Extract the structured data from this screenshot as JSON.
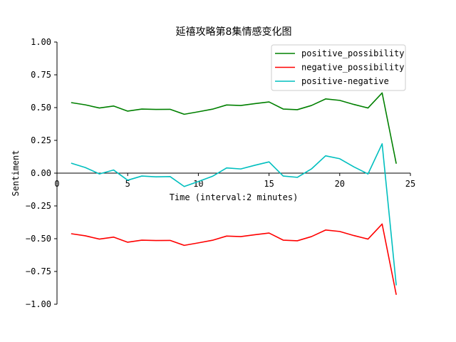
{
  "chart_data": {
    "type": "line",
    "title": "延禧攻略第8集情感变化图",
    "xlabel": "Time (interval:2 minutes)",
    "ylabel": "Sentiment",
    "xlim": [
      0,
      25
    ],
    "ylim": [
      -1.0,
      1.0
    ],
    "xticks": [
      0,
      5,
      10,
      15,
      20,
      25
    ],
    "yticks": [
      1.0,
      0.75,
      0.5,
      0.25,
      0.0,
      -0.25,
      -0.5,
      -0.75,
      -1.0
    ],
    "xtick_labels": [
      "0",
      "5",
      "10",
      "15",
      "20",
      "25"
    ],
    "ytick_labels": [
      "1.00",
      "0.75",
      "0.50",
      "0.25",
      "0.00",
      "−0.25",
      "−0.50",
      "−0.75",
      "−1.00"
    ],
    "grid": false,
    "legend_position": "upper right",
    "x": [
      1,
      2,
      3,
      4,
      5,
      6,
      7,
      8,
      9,
      10,
      11,
      12,
      13,
      14,
      15,
      16,
      17,
      18,
      19,
      20,
      21,
      22,
      23,
      24
    ],
    "series": [
      {
        "name": "positive_possibility",
        "color": "#008000",
        "values": [
          0.538,
          0.521,
          0.497,
          0.512,
          0.473,
          0.489,
          0.486,
          0.487,
          0.449,
          0.468,
          0.488,
          0.52,
          0.516,
          0.53,
          0.543,
          0.489,
          0.484,
          0.516,
          0.566,
          0.555,
          0.524,
          0.497,
          0.612,
          0.072
        ]
      },
      {
        "name": "negative_possibility",
        "color": "#ff0000",
        "values": [
          -0.462,
          -0.478,
          -0.503,
          -0.488,
          -0.527,
          -0.511,
          -0.514,
          -0.513,
          -0.551,
          -0.532,
          -0.512,
          -0.48,
          -0.484,
          -0.47,
          -0.457,
          -0.511,
          -0.516,
          -0.484,
          -0.434,
          -0.445,
          -0.476,
          -0.503,
          -0.388,
          -0.928
        ]
      },
      {
        "name": "positive-negative",
        "color": "#00bfbf",
        "values": [
          0.076,
          0.043,
          -0.006,
          0.024,
          -0.054,
          -0.022,
          -0.028,
          -0.026,
          -0.102,
          -0.064,
          -0.024,
          0.04,
          0.032,
          0.06,
          0.086,
          -0.022,
          -0.032,
          0.032,
          0.132,
          0.11,
          0.048,
          -0.006,
          0.224,
          -0.856
        ]
      }
    ]
  }
}
